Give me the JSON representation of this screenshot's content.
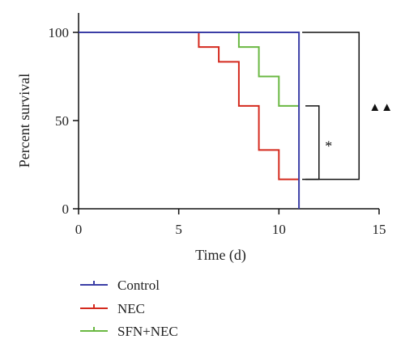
{
  "chart_data": {
    "type": "line",
    "step": true,
    "xlabel": "Time (d)",
    "ylabel": "Percent survival",
    "xlim": [
      0,
      15
    ],
    "ylim": [
      0,
      100
    ],
    "x_ticks": [
      0,
      5,
      10,
      15
    ],
    "y_ticks": [
      0,
      50,
      100
    ],
    "grid": false,
    "legend_position": "bottom-left",
    "series": [
      {
        "name": "Control",
        "color": "#3b3ea6",
        "x": [
          0,
          11,
          11
        ],
        "y": [
          100,
          100,
          0
        ]
      },
      {
        "name": "NEC",
        "color": "#d42a1e",
        "x": [
          0,
          6,
          6,
          7,
          7,
          8,
          8,
          9,
          9,
          10,
          10,
          11
        ],
        "y": [
          100,
          100,
          91.7,
          91.7,
          83.3,
          83.3,
          58.3,
          58.3,
          33.3,
          33.3,
          16.7,
          16.7
        ]
      },
      {
        "name": "SFN+NEC",
        "color": "#6ab842",
        "x": [
          0,
          8,
          8,
          9,
          9,
          10,
          10,
          11
        ],
        "y": [
          100,
          100,
          91.7,
          91.7,
          75,
          75,
          58.3,
          58.3
        ]
      }
    ],
    "annotations": [
      {
        "label": "*",
        "from_y": 58.3,
        "to_y": 16.7,
        "bracket_x": 12
      },
      {
        "label": "▲▲",
        "from_y": 100,
        "to_y": 16.7,
        "bracket_x": 14
      }
    ]
  }
}
